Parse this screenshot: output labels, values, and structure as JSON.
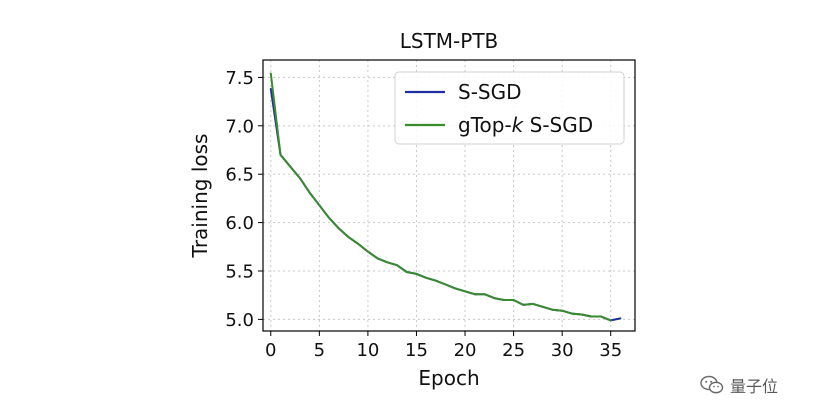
{
  "chart_data": {
    "type": "line",
    "title": "LSTM-PTB",
    "xlabel": "Epoch",
    "ylabel": "Training loss",
    "xlim": [
      -0.8,
      37.5
    ],
    "ylim": [
      4.88,
      7.68
    ],
    "xticks": [
      0,
      5,
      10,
      15,
      20,
      25,
      30,
      35
    ],
    "yticks": [
      5.0,
      5.5,
      6.0,
      6.5,
      7.0,
      7.5
    ],
    "ytick_labels": [
      "5.0",
      "5.5",
      "6.0",
      "6.5",
      "7.0",
      "7.5"
    ],
    "grid": true,
    "legend_position": "top-right",
    "series": [
      {
        "name": "S-SGD",
        "color": "#1f2f9f",
        "x": [
          0,
          1,
          2,
          3,
          4,
          5,
          6,
          7,
          8,
          9,
          10,
          11,
          12,
          13,
          14,
          15,
          16,
          17,
          18,
          19,
          20,
          21,
          22,
          23,
          24,
          25,
          26,
          27,
          28,
          29,
          30,
          31,
          32,
          33,
          34,
          35,
          36
        ],
        "y": [
          7.38,
          6.7,
          6.58,
          6.46,
          6.31,
          6.18,
          6.05,
          5.94,
          5.85,
          5.78,
          5.7,
          5.63,
          5.59,
          5.56,
          5.49,
          5.47,
          5.43,
          5.4,
          5.36,
          5.32,
          5.29,
          5.26,
          5.26,
          5.22,
          5.2,
          5.2,
          5.15,
          5.16,
          5.13,
          5.1,
          5.09,
          5.06,
          5.05,
          5.03,
          5.03,
          4.99,
          5.01
        ]
      },
      {
        "name": "gTop-k S-SGD",
        "color": "#3a8a2e",
        "x": [
          0,
          1,
          2,
          3,
          4,
          5,
          6,
          7,
          8,
          9,
          10,
          11,
          12,
          13,
          14,
          15,
          16,
          17,
          18,
          19,
          20,
          21,
          22,
          23,
          24,
          25,
          26,
          27,
          28,
          29,
          30,
          31,
          32,
          33,
          34,
          35
        ],
        "y": [
          7.54,
          6.7,
          6.58,
          6.46,
          6.31,
          6.18,
          6.05,
          5.94,
          5.85,
          5.78,
          5.7,
          5.63,
          5.59,
          5.56,
          5.49,
          5.47,
          5.43,
          5.4,
          5.36,
          5.32,
          5.29,
          5.26,
          5.26,
          5.22,
          5.2,
          5.2,
          5.15,
          5.16,
          5.13,
          5.1,
          5.09,
          5.06,
          5.05,
          5.03,
          5.03,
          4.99
        ]
      }
    ]
  },
  "legend": {
    "s_sgd": "S-SGD",
    "gtopk_prefix": "gTop-",
    "gtopk_k": "k",
    "gtopk_suffix": " S-SGD"
  },
  "watermark": {
    "text": "量子位",
    "icon": "wechat-icon"
  }
}
